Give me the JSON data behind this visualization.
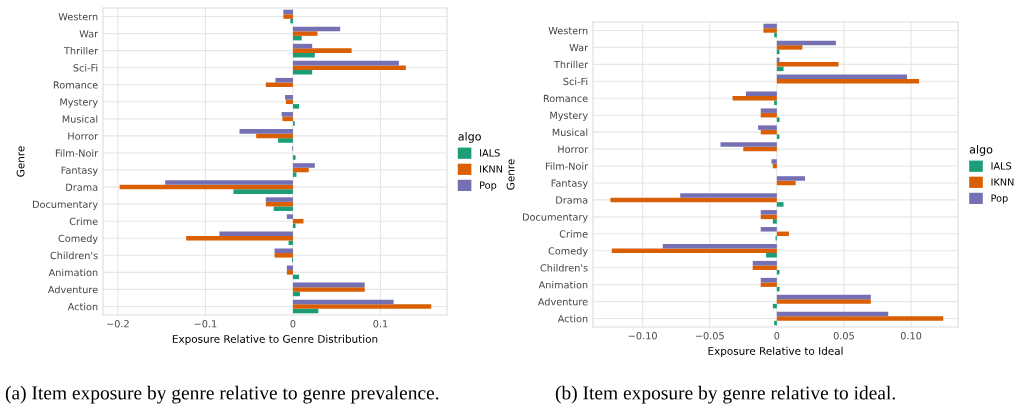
{
  "chart_data": [
    {
      "type": "bar",
      "orientation": "horizontal",
      "xlabel": "Exposure Relative to Genre Distribution",
      "ylabel": "Genre",
      "legend_title": "algo",
      "legend": "right",
      "grid": true,
      "categories": [
        "Western",
        "War",
        "Thriller",
        "Sci-Fi",
        "Romance",
        "Mystery",
        "Musical",
        "Horror",
        "Film-Noir",
        "Fantasy",
        "Drama",
        "Documentary",
        "Crime",
        "Comedy",
        "Children's",
        "Animation",
        "Adventure",
        "Action"
      ],
      "series": [
        {
          "name": "IALS",
          "color": "#1b9e77",
          "values": [
            -0.003,
            0.01,
            0.025,
            0.022,
            0,
            0.007,
            0.002,
            -0.017,
            0.003,
            0.004,
            -0.068,
            -0.022,
            0.003,
            -0.005,
            -0.001,
            0.007,
            0.008,
            0.029
          ]
        },
        {
          "name": "IKNN",
          "color": "#d95f02",
          "values": [
            -0.011,
            0.028,
            0.067,
            0.129,
            -0.031,
            -0.008,
            -0.012,
            -0.042,
            0,
            0.018,
            -0.198,
            -0.031,
            0.012,
            -0.122,
            -0.021,
            -0.007,
            0.082,
            0.158
          ]
        },
        {
          "name": "Pop",
          "color": "#7570b3",
          "values": [
            -0.011,
            0.054,
            0.022,
            0.121,
            -0.02,
            -0.009,
            -0.013,
            -0.061,
            -0.001,
            0.025,
            -0.146,
            -0.031,
            -0.007,
            -0.084,
            -0.021,
            -0.007,
            0.082,
            0.115
          ]
        }
      ],
      "xlim": [
        -0.217,
        0.176
      ],
      "xticks": [
        {
          "value": -0.2,
          "label": "−0.2"
        },
        {
          "value": -0.1,
          "label": "−0.1"
        },
        0,
        0.1
      ],
      "annotations": [
        "(a) Item exposure by genre relative to genre prevalence."
      ]
    },
    {
      "type": "bar",
      "orientation": "horizontal",
      "xlabel": "Exposure Relative to Ideal",
      "ylabel": "Genre",
      "legend_title": "algo",
      "legend": "right",
      "grid": true,
      "categories": [
        "Western",
        "War",
        "Thriller",
        "Sci-Fi",
        "Romance",
        "Mystery",
        "Musical",
        "Horror",
        "Film-Noir",
        "Fantasy",
        "Drama",
        "Documentary",
        "Crime",
        "Comedy",
        "Children's",
        "Animation",
        "Adventure",
        "Action"
      ],
      "series": [
        {
          "name": "IALS",
          "color": "#1b9e77",
          "values": [
            -0.002,
            0.002,
            0.005,
            0,
            -0.002,
            0.002,
            0.002,
            0,
            0,
            0,
            0.005,
            -0.003,
            -0.001,
            -0.008,
            0.002,
            0.002,
            -0.003,
            -0.002
          ]
        },
        {
          "name": "IKNN",
          "color": "#d95f02",
          "values": [
            -0.01,
            0.019,
            0.046,
            0.106,
            -0.033,
            -0.012,
            -0.012,
            -0.025,
            -0.003,
            0.014,
            -0.124,
            -0.012,
            0.009,
            -0.123,
            -0.018,
            -0.012,
            0.07,
            0.124
          ]
        },
        {
          "name": "Pop",
          "color": "#7570b3",
          "values": [
            -0.01,
            0.044,
            0.002,
            0.097,
            -0.023,
            -0.012,
            -0.014,
            -0.042,
            -0.004,
            0.021,
            -0.072,
            -0.012,
            -0.012,
            -0.085,
            -0.018,
            -0.012,
            0.07,
            0.083
          ]
        }
      ],
      "xlim": [
        -0.137,
        0.135
      ],
      "xticks": [
        {
          "value": -0.1,
          "label": "−0.10"
        },
        {
          "value": -0.05,
          "label": "−0.05"
        },
        0,
        0.05,
        {
          "value": 0.1,
          "label": "0.10"
        }
      ],
      "annotations": [
        "(b) Item exposure by genre relative to ideal."
      ]
    }
  ]
}
